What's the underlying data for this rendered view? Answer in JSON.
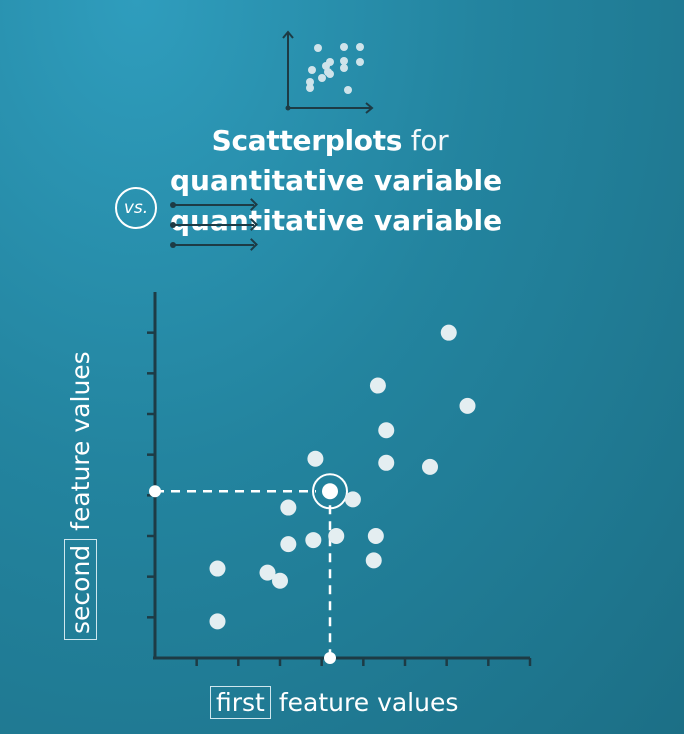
{
  "title": {
    "main_bold": "Scatterplots",
    "main_light": "for",
    "line2": "quantitative variable",
    "line3": "quantitative variable",
    "vs": "vs."
  },
  "chart_data": {
    "type": "scatter",
    "xlabel_boxed": "first",
    "xlabel_rest": "feature values",
    "ylabel_boxed": "second",
    "ylabel_rest": "feature values",
    "xlim": [
      0,
      18
    ],
    "ylim": [
      0,
      9
    ],
    "grid": false,
    "ticks_labeled": false,
    "points": [
      {
        "x": 3,
        "y": 0.9
      },
      {
        "x": 3,
        "y": 2.2
      },
      {
        "x": 5.4,
        "y": 2.1
      },
      {
        "x": 6,
        "y": 1.9
      },
      {
        "x": 6.4,
        "y": 3.7
      },
      {
        "x": 6.4,
        "y": 2.8
      },
      {
        "x": 7.7,
        "y": 4.9
      },
      {
        "x": 7.6,
        "y": 2.9
      },
      {
        "x": 8.7,
        "y": 3.0
      },
      {
        "x": 9.5,
        "y": 3.9
      },
      {
        "x": 10.5,
        "y": 2.4
      },
      {
        "x": 10.6,
        "y": 3.0
      },
      {
        "x": 10.7,
        "y": 6.7
      },
      {
        "x": 11.1,
        "y": 4.8
      },
      {
        "x": 11.1,
        "y": 5.6
      },
      {
        "x": 13.2,
        "y": 4.7
      },
      {
        "x": 14.1,
        "y": 8.0
      },
      {
        "x": 15.0,
        "y": 6.2
      }
    ],
    "highlight": {
      "x": 8.4,
      "y": 4.1
    }
  },
  "colors": {
    "background": "#23849f",
    "axis": "#1d3b45",
    "point": "#e4eef1",
    "guide": "#ffffff"
  },
  "icons": {
    "mini_scatter": "scatterplot-icon",
    "vs_badge": "vs-circle-badge",
    "arrows": "axis-arrow-icon"
  }
}
